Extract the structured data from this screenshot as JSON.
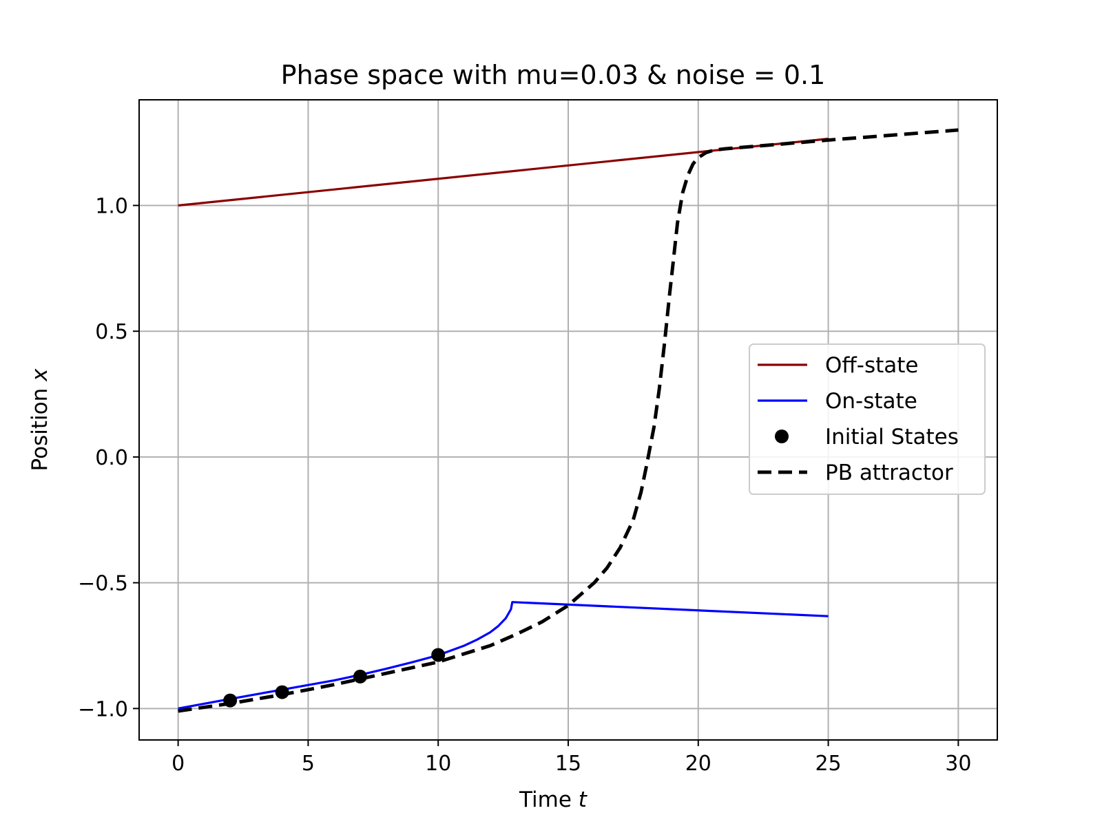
{
  "chart_data": {
    "type": "line",
    "title": "Phase space with mu=0.03 & noise = 0.1",
    "xlabel": "Time",
    "xlabel_var": "t",
    "ylabel": "Position",
    "ylabel_var": "x",
    "xlim": [
      -1.5,
      31.5
    ],
    "ylim": [
      -1.125,
      1.42
    ],
    "xticks": [
      0,
      5,
      10,
      15,
      20,
      25,
      30
    ],
    "yticks": [
      -1.0,
      -0.5,
      0.0,
      0.5,
      1.0
    ],
    "ytick_labels": [
      "−1.0",
      "−0.5",
      "0.0",
      "0.5",
      "1.0"
    ],
    "grid": true,
    "legend_position": "center-right",
    "series": [
      {
        "name": "Off-state",
        "kind": "line",
        "color": "#8b0000",
        "x": [
          0,
          25
        ],
        "y": [
          1.0,
          1.265
        ]
      },
      {
        "name": "On-state",
        "kind": "line",
        "color": "#0000ff",
        "x": [
          0,
          2,
          4,
          6,
          7,
          8,
          9,
          10,
          11,
          11.5,
          12,
          12.3,
          12.6,
          12.8,
          12.85,
          25
        ],
        "y": [
          -1.0,
          -0.962,
          -0.925,
          -0.888,
          -0.866,
          -0.842,
          -0.816,
          -0.788,
          -0.75,
          -0.726,
          -0.697,
          -0.673,
          -0.641,
          -0.605,
          -0.577,
          -0.633
        ]
      },
      {
        "name": "Initial States",
        "kind": "scatter",
        "color": "#000000",
        "x": [
          2,
          4,
          7,
          10
        ],
        "y": [
          -0.968,
          -0.935,
          -0.873,
          -0.787
        ]
      },
      {
        "name": "PB attractor",
        "kind": "dashed-line",
        "color": "#000000",
        "x": [
          0,
          2,
          4,
          6,
          8,
          10,
          12,
          13,
          14,
          15,
          16,
          16.5,
          17,
          17.5,
          17.8,
          18,
          18.3,
          18.5,
          18.7,
          18.9,
          19.0,
          19.2,
          19.4,
          19.6,
          19.8,
          20.0,
          20.3,
          20.6,
          21,
          25,
          30
        ],
        "y": [
          -1.01,
          -0.98,
          -0.945,
          -0.905,
          -0.86,
          -0.815,
          -0.75,
          -0.705,
          -0.655,
          -0.59,
          -0.5,
          -0.44,
          -0.36,
          -0.25,
          -0.14,
          -0.04,
          0.12,
          0.27,
          0.45,
          0.65,
          0.74,
          0.93,
          1.05,
          1.12,
          1.165,
          1.19,
          1.21,
          1.22,
          1.225,
          1.26,
          1.3
        ]
      }
    ]
  }
}
